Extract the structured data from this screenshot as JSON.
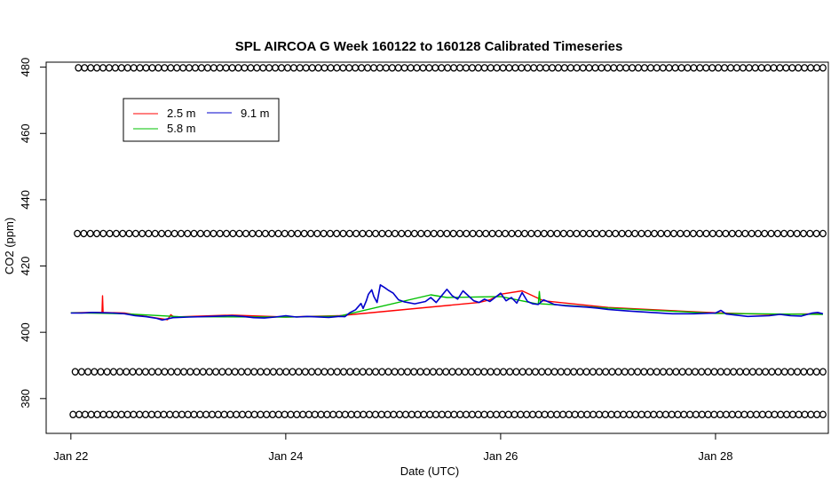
{
  "chart_data": {
    "type": "line",
    "title": "SPL AIRCOA G  Week 160122 to 160128  Calibrated Timeseries",
    "xlabel": "Date (UTC)",
    "ylabel": "CO2 (ppm)",
    "xlim": [
      -0.23,
      7.05
    ],
    "ylim": [
      369.5,
      481.5
    ],
    "x_unit": "days since Jan 22 00:00 UTC",
    "x_ticks": [
      {
        "value": 0,
        "label": "Jan 22"
      },
      {
        "value": 2,
        "label": "Jan 24"
      },
      {
        "value": 4,
        "label": "Jan 26"
      },
      {
        "value": 6,
        "label": "Jan 28"
      }
    ],
    "y_ticks": [
      {
        "value": 380,
        "label": "380"
      },
      {
        "value": 400,
        "label": "400"
      },
      {
        "value": 420,
        "label": "420"
      },
      {
        "value": 440,
        "label": "440"
      },
      {
        "value": 460,
        "label": "460"
      },
      {
        "value": 480,
        "label": "480"
      }
    ],
    "grid": false,
    "legend_position": "top-left",
    "series": [
      {
        "name": "2.5 m",
        "color": "#ff0000",
        "points": [
          [
            0,
            405.9
          ],
          [
            0.2,
            406.0
          ],
          [
            0.29,
            406.0
          ],
          [
            0.295,
            411.0
          ],
          [
            0.3,
            406.0
          ],
          [
            0.5,
            405.8
          ],
          [
            0.7,
            404.8
          ],
          [
            0.9,
            403.8
          ],
          [
            0.93,
            405.3
          ],
          [
            0.96,
            404.6
          ],
          [
            1.2,
            404.9
          ],
          [
            1.5,
            405.2
          ],
          [
            2.0,
            404.6
          ],
          [
            2.5,
            405.0
          ],
          [
            3.8,
            409.0
          ],
          [
            3.9,
            409.8
          ],
          [
            4.0,
            411.5
          ],
          [
            4.2,
            412.5
          ],
          [
            4.4,
            409.5
          ],
          [
            5.0,
            407.5
          ],
          [
            6.0,
            405.9
          ],
          [
            6.5,
            405.4
          ],
          [
            7.0,
            405.6
          ]
        ]
      },
      {
        "name": "5.8 m",
        "color": "#00c000",
        "points": [
          [
            0,
            405.9
          ],
          [
            0.5,
            405.6
          ],
          [
            1.0,
            404.7
          ],
          [
            2.0,
            404.6
          ],
          [
            2.5,
            404.9
          ],
          [
            3.35,
            411.3
          ],
          [
            3.5,
            410.5
          ],
          [
            4.0,
            410.8
          ],
          [
            4.35,
            408.5
          ],
          [
            4.36,
            412.3
          ],
          [
            4.37,
            408.6
          ],
          [
            5.0,
            407.3
          ],
          [
            6.0,
            405.7
          ],
          [
            7.0,
            405.4
          ]
        ]
      },
      {
        "name": "9.1 m",
        "color": "#0000cc",
        "points": [
          [
            0,
            405.8
          ],
          [
            0.1,
            405.8
          ],
          [
            0.2,
            406.0
          ],
          [
            0.4,
            405.8
          ],
          [
            0.5,
            405.6
          ],
          [
            0.6,
            405.0
          ],
          [
            0.7,
            404.7
          ],
          [
            0.8,
            404.2
          ],
          [
            0.85,
            403.7
          ],
          [
            0.95,
            404.4
          ],
          [
            1.1,
            404.6
          ],
          [
            1.3,
            404.8
          ],
          [
            1.5,
            405.0
          ],
          [
            1.6,
            404.8
          ],
          [
            1.7,
            404.4
          ],
          [
            1.8,
            404.3
          ],
          [
            1.9,
            404.6
          ],
          [
            2.0,
            405.0
          ],
          [
            2.1,
            404.6
          ],
          [
            2.2,
            404.8
          ],
          [
            2.4,
            404.5
          ],
          [
            2.5,
            404.8
          ],
          [
            2.55,
            404.7
          ],
          [
            2.6,
            406.0
          ],
          [
            2.65,
            406.8
          ],
          [
            2.7,
            408.7
          ],
          [
            2.72,
            407.2
          ],
          [
            2.75,
            409.5
          ],
          [
            2.77,
            411.5
          ],
          [
            2.8,
            412.8
          ],
          [
            2.82,
            410.8
          ],
          [
            2.85,
            409.0
          ],
          [
            2.88,
            414.3
          ],
          [
            2.92,
            413.5
          ],
          [
            2.95,
            412.8
          ],
          [
            3.0,
            411.8
          ],
          [
            3.05,
            409.8
          ],
          [
            3.1,
            409.2
          ],
          [
            3.2,
            408.6
          ],
          [
            3.3,
            409.3
          ],
          [
            3.35,
            410.5
          ],
          [
            3.4,
            409.0
          ],
          [
            3.45,
            411.0
          ],
          [
            3.5,
            413.0
          ],
          [
            3.55,
            411.0
          ],
          [
            3.6,
            410.0
          ],
          [
            3.65,
            412.5
          ],
          [
            3.7,
            411.0
          ],
          [
            3.75,
            409.5
          ],
          [
            3.8,
            409.0
          ],
          [
            3.85,
            410.0
          ],
          [
            3.9,
            409.3
          ],
          [
            4.0,
            411.8
          ],
          [
            4.05,
            409.5
          ],
          [
            4.1,
            410.5
          ],
          [
            4.15,
            408.8
          ],
          [
            4.2,
            412.0
          ],
          [
            4.25,
            409.3
          ],
          [
            4.3,
            408.6
          ],
          [
            4.35,
            408.4
          ],
          [
            4.4,
            409.8
          ],
          [
            4.5,
            408.4
          ],
          [
            4.6,
            408.0
          ],
          [
            4.7,
            407.8
          ],
          [
            4.8,
            407.6
          ],
          [
            4.9,
            407.3
          ],
          [
            5.0,
            406.9
          ],
          [
            5.2,
            406.4
          ],
          [
            5.4,
            406.0
          ],
          [
            5.6,
            405.6
          ],
          [
            5.8,
            405.6
          ],
          [
            6.0,
            405.8
          ],
          [
            6.05,
            406.6
          ],
          [
            6.1,
            405.5
          ],
          [
            6.3,
            404.8
          ],
          [
            6.5,
            405.0
          ],
          [
            6.6,
            405.4
          ],
          [
            6.7,
            405.0
          ],
          [
            6.8,
            404.9
          ],
          [
            6.9,
            405.8
          ],
          [
            6.95,
            406.0
          ],
          [
            7.0,
            405.6
          ]
        ]
      }
    ],
    "marker_rows": [
      {
        "y": 479.8,
        "x_start": 0.07,
        "x_end": 7.0,
        "n": 122
      },
      {
        "y": 429.8,
        "x_start": 0.06,
        "x_end": 7.0,
        "n": 116
      },
      {
        "y": 388.1,
        "x_start": 0.04,
        "x_end": 7.0,
        "n": 118
      },
      {
        "y": 375.2,
        "x_start": 0.02,
        "x_end": 7.0,
        "n": 125
      }
    ],
    "marker_glyph": "o",
    "legend": [
      {
        "label": "2.5 m",
        "color": "#ff0000"
      },
      {
        "label": "9.1 m",
        "color": "#0000cc"
      },
      {
        "label": "5.8 m",
        "color": "#00c000"
      }
    ]
  }
}
